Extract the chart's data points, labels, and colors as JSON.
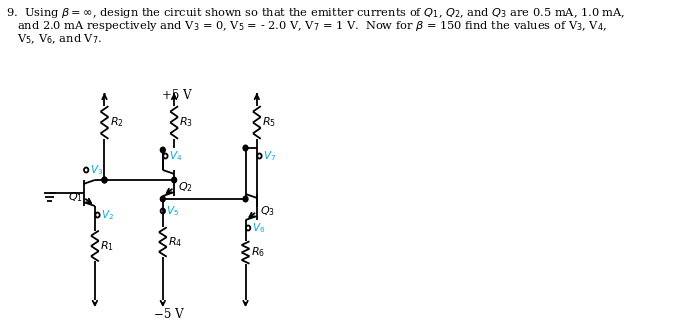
{
  "line1": "9.  Using $\\beta=\\infty$, design the circuit shown so that the emitter currents of $Q_1$, $Q_2$, and $Q_3$ are 0.5 mA, 1.0 mA,",
  "line2": "and 2.0 mA respectively and V$_3$ = 0, V$_5$ = - 2.0 V, V$_7$ = 1 V.  Now for $\\beta$ = 150 find the values of V$_3$, V$_4$,",
  "line3": "V$_5$, V$_6$, and V$_7$.",
  "vplus": "+5 V",
  "vminus": "−5 V",
  "cc": "#000000",
  "cyan": "#00AADD",
  "bg": "#ffffff",
  "lw": 1.3
}
